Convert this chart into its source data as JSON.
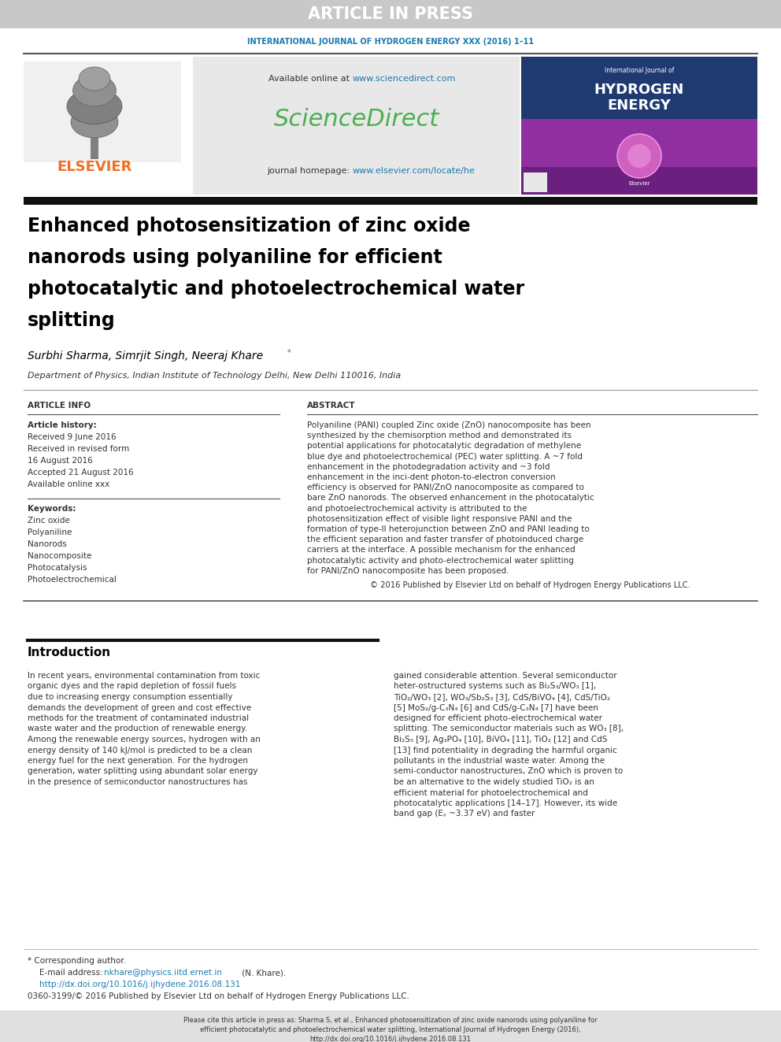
{
  "fig_width": 9.92,
  "fig_height": 13.23,
  "bg_color": "#ffffff",
  "header_bar_color": "#c8c8c8",
  "header_text": "ARTICLE IN PRESS",
  "header_text_color": "#ffffff",
  "journal_line_color": "#1a7aad",
  "journal_line_text": "INTERNATIONAL JOURNAL OF HYDROGEN ENERGY XXX (2016) 1–11",
  "elsevier_color": "#f07020",
  "sciencedirect_color": "#4caf50",
  "available_online_url_color": "#1a7aad",
  "sciencedirect_text": "ScienceDirect",
  "journal_homepage_url_color": "#1a7aad",
  "paper_title_line1": "Enhanced photosensitization of zinc oxide",
  "paper_title_line2": "nanorods using polyaniline for efficient",
  "paper_title_line3": "photocatalytic and photoelectrochemical water",
  "paper_title_line4": "splitting",
  "title_color": "#000000",
  "authors": "Surbhi Sharma, Simrjit Singh, Neeraj Khare",
  "affiliation": "Department of Physics, Indian Institute of Technology Delhi, New Delhi 110016, India",
  "article_info_title": "ARTICLE INFO",
  "abstract_title": "ABSTRACT",
  "article_history_label": "Article history:",
  "received_1": "Received 9 June 2016",
  "received_revised": "Received in revised form",
  "revised_date": "16 August 2016",
  "accepted": "Accepted 21 August 2016",
  "available_online": "Available online xxx",
  "keywords_label": "Keywords:",
  "keywords": [
    "Zinc oxide",
    "Polyaniline",
    "Nanorods",
    "Nanocomposite",
    "Photocatalysis",
    "Photoelectrochemical"
  ],
  "abstract_text": "Polyaniline (PANI) coupled Zinc oxide (ZnO) nanocomposite has been synthesized by the chemisorption method and demonstrated its potential applications for photocatalytic degradation of methylene blue dye and photoelectrochemical (PEC) water splitting. A ~7 fold enhancement in the photodegradation activity and ~3 fold enhancement in the inci-dent photon-to-electron conversion efficiency is observed for PANI/ZnO nanocomposite as compared to bare ZnO nanorods. The observed enhancement in the photocatalytic and photoelectrochemical activity is attributed to the photosensitization effect of visible light responsive PANI and the formation of type-II heterojunction between ZnO and PANI leading to the efficient separation and faster transfer of photoinduced charge carriers at the interface. A possible mechanism for the enhanced photocatalytic activity and photo-electrochemical water splitting for PANI/ZnO nanocomposite has been proposed.",
  "copyright_text": "© 2016 Published by Elsevier Ltd on behalf of Hydrogen Energy Publications LLC.",
  "intro_title": "Introduction",
  "intro_text_left": "In recent years, environmental contamination from toxic organic dyes and the rapid depletion of fossil fuels due to increasing energy consumption essentially demands the development of green and cost effective methods for the treatment of contaminated industrial waste water and the production of renewable energy. Among the renewable energy sources, hydrogen with an energy density of 140 kJ/mol is predicted to be a clean energy fuel for the next generation. For the hydrogen generation, water splitting using abundant solar energy in the presence of semiconductor nanostructures has",
  "intro_text_right": "gained considerable attention. Several semiconductor heter-ostructured systems such as Bi₂S₃/WO₃ [1], TiO₂/WO₃ [2], WO₃/Sb₂S₃ [3], CdS/BiVO₄ [4], CdS/TiO₂ [5] MoS₂/g-C₃N₄ [6] and CdS/g-C₃N₄ [7] have been designed for efficient photo-electrochemical water splitting. The semiconductor materials such as WO₃ [8], Bi₂S₃ [9], Ag₃PO₄ [10], BiVO₄ [11], TiO₂ [12] and CdS [13] find potentiality in degrading the harmful organic pollutants in the industrial waste water. Among the semi-conductor nanostructures, ZnO which is proven to be an alternative to the widely studied TiO₂ is an efficient material for photoelectrochemical and photocatalytic applications [14–17]. However, its wide band gap (Eᵧ ~3.37 eV) and faster",
  "footnote_star": "* Corresponding author.",
  "footnote_email_label": "E-mail address:",
  "footnote_email": "nkhare@physics.iitd.ernet.in",
  "footnote_email_name": "(N. Khare).",
  "footnote_doi": "http://dx.doi.org/10.1016/j.ijhydene.2016.08.131",
  "footnote_issn": "0360-3199/© 2016 Published by Elsevier Ltd on behalf of Hydrogen Energy Publications LLC.",
  "bottom_cite_text": "Please cite this article in press as: Sharma S, et al., Enhanced photosensitization of zinc oxide nanorods using polyaniline for efficient photocatalytic and photoelectrochemical water splitting, International Journal of Hydrogen Energy (2016), http://dx.doi.org/10.1016/j.ijhydene.2016.08.131",
  "bottom_bar_color": "#e0e0e0",
  "teal_color": "#1a7aad",
  "center_box_color": "#e8e8e8",
  "cover_bg_top": "#1a3a6e",
  "cover_bg_bottom": "#7030a0"
}
